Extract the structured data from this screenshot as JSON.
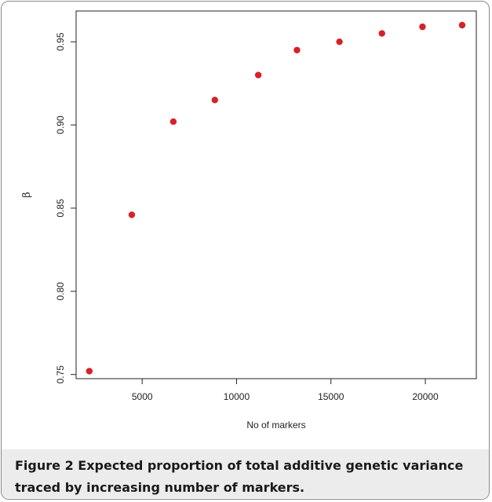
{
  "figure": {
    "caption_label": "Figure 2",
    "caption_text": "Expected proportion of total additive genetic variance traced by increasing number of markers."
  },
  "chart_data": {
    "type": "scatter",
    "title": "",
    "xlabel": "No of markers",
    "ylabel": "β",
    "xlim": [
      1500,
      22700
    ],
    "ylim": [
      0.7475,
      0.9685
    ],
    "xticks": [
      5000,
      10000,
      15000,
      20000
    ],
    "xtick_labels": [
      "5000",
      "10000",
      "15000",
      "20000"
    ],
    "yticks": [
      0.75,
      0.8,
      0.85,
      0.9,
      0.95
    ],
    "ytick_labels": [
      "0.75",
      "0.80",
      "0.85",
      "0.90",
      "0.95"
    ],
    "grid": false,
    "point_color": "#d7212a",
    "series": [
      {
        "x": [
          2200,
          4450,
          6650,
          8850,
          11150,
          13200,
          15450,
          17700,
          19850,
          21950
        ],
        "y": [
          0.752,
          0.846,
          0.902,
          0.915,
          0.93,
          0.945,
          0.95,
          0.955,
          0.959,
          0.96
        ]
      }
    ]
  }
}
